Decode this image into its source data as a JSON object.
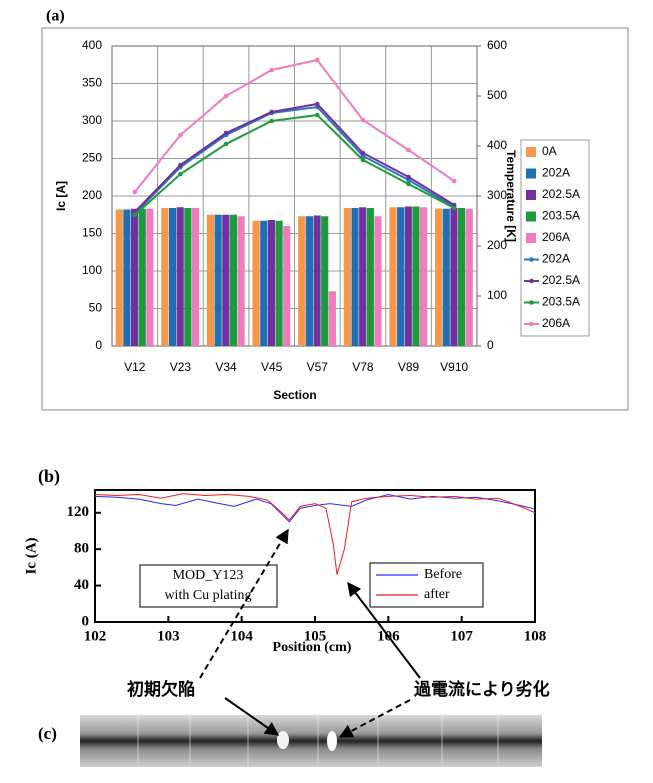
{
  "chart_data": [
    {
      "type": "bar",
      "panel_label": "(a)",
      "x_label": "Section",
      "y_label": "Ic [A]",
      "y2_label": "Temperature [K]",
      "categories": [
        "V12",
        "V23",
        "V34",
        "V45",
        "V57",
        "V78",
        "V89",
        "V910"
      ],
      "ylim": [
        0,
        400
      ],
      "yticks": [
        0,
        50,
        100,
        150,
        200,
        250,
        300,
        350,
        400
      ],
      "y2lim": [
        0,
        600
      ],
      "y2ticks": [
        0,
        100,
        200,
        300,
        400,
        500,
        600
      ],
      "grid": true,
      "series": [
        {
          "name": "0A",
          "type": "bar",
          "color": "#f79646",
          "values": [
            182,
            184,
            175,
            167,
            173,
            184,
            185,
            183
          ]
        },
        {
          "name": "202A",
          "type": "bar",
          "color": "#1f6fb4",
          "values": [
            182,
            184,
            175,
            167,
            173,
            184,
            185,
            183
          ]
        },
        {
          "name": "202.5A",
          "type": "bar",
          "color": "#7030a0",
          "values": [
            183,
            185,
            175,
            168,
            174,
            185,
            186,
            184
          ]
        },
        {
          "name": "203.5A",
          "type": "bar",
          "color": "#1e9a3c",
          "values": [
            183,
            184,
            175,
            167,
            173,
            184,
            186,
            184
          ]
        },
        {
          "name": "206A",
          "type": "bar",
          "color": "#f07cc0",
          "values": [
            183,
            184,
            173,
            160,
            73,
            173,
            185,
            183
          ]
        },
        {
          "name": "202A",
          "type": "line",
          "axis": "y2",
          "color": "#2e75b6",
          "values": [
            265,
            358,
            422,
            466,
            478,
            380,
            332,
            278
          ]
        },
        {
          "name": "202.5A",
          "type": "line",
          "axis": "y2",
          "color": "#7030a0",
          "values": [
            268,
            362,
            426,
            468,
            484,
            386,
            338,
            282
          ]
        },
        {
          "name": "203.5A",
          "type": "line",
          "axis": "y2",
          "color": "#1e9a3c",
          "values": [
            262,
            344,
            404,
            450,
            462,
            372,
            324,
            276
          ]
        },
        {
          "name": "206A",
          "type": "line",
          "axis": "y2",
          "color": "#f07cc0",
          "values": [
            308,
            422,
            500,
            552,
            572,
            452,
            392,
            330
          ]
        }
      ]
    },
    {
      "type": "line",
      "panel_label": "(b)",
      "x_label": "Position (cm)",
      "y_label": "Ic (A)",
      "xlim": [
        102,
        108
      ],
      "xticks": [
        102,
        103,
        104,
        105,
        106,
        107,
        108
      ],
      "ylim": [
        0,
        145
      ],
      "yticks": [
        0,
        40,
        80,
        120
      ],
      "annotation": [
        "MOD_Y123",
        "with Cu plating"
      ],
      "series": [
        {
          "name": "Before",
          "color": "#2a2aff",
          "x": [
            102,
            102.3,
            102.6,
            102.9,
            103.1,
            103.4,
            103.7,
            103.9,
            104.2,
            104.4,
            104.55,
            104.65,
            104.8,
            105.0,
            105.2,
            105.5,
            105.7,
            106.0,
            106.3,
            106.6,
            106.9,
            107.2,
            107.5,
            107.8,
            108
          ],
          "values": [
            138,
            137,
            135,
            130,
            128,
            135,
            130,
            127,
            135,
            130,
            118,
            110,
            125,
            128,
            130,
            127,
            134,
            140,
            135,
            138,
            136,
            137,
            133,
            128,
            124
          ]
        },
        {
          "name": "after",
          "color": "#ee1c1c",
          "x": [
            102,
            102.3,
            102.6,
            102.9,
            103.2,
            103.5,
            103.8,
            104.1,
            104.35,
            104.55,
            104.65,
            104.8,
            105.0,
            105.15,
            105.25,
            105.3,
            105.4,
            105.5,
            105.7,
            106.0,
            106.3,
            106.6,
            106.9,
            107.2,
            107.5,
            107.8,
            108
          ],
          "values": [
            140,
            139,
            140,
            136,
            141,
            139,
            140,
            138,
            134,
            120,
            112,
            127,
            130,
            125,
            85,
            52,
            80,
            132,
            136,
            138,
            139,
            137,
            138,
            135,
            136,
            127,
            120
          ]
        }
      ]
    }
  ],
  "panel_c": {
    "label": "(c)",
    "annotations": [
      "初期欠陥",
      "過電流により劣化"
    ]
  }
}
